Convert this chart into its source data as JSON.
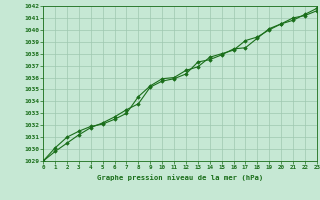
{
  "x": [
    0,
    1,
    2,
    3,
    4,
    5,
    6,
    7,
    8,
    9,
    10,
    11,
    12,
    13,
    14,
    15,
    16,
    17,
    18,
    19,
    20,
    21,
    22,
    23
  ],
  "line1": [
    1029.0,
    1029.8,
    1030.5,
    1031.2,
    1031.8,
    1032.2,
    1032.7,
    1033.3,
    1033.8,
    1035.2,
    1035.7,
    1035.9,
    1036.3,
    1037.3,
    1037.5,
    1037.9,
    1038.4,
    1038.5,
    1039.3,
    1040.1,
    1040.5,
    1041.0,
    1041.2,
    1041.6
  ],
  "line2": [
    1029.0,
    1030.1,
    1031.0,
    1031.5,
    1031.9,
    1032.1,
    1032.5,
    1033.0,
    1034.4,
    1035.3,
    1035.9,
    1036.0,
    1036.6,
    1036.9,
    1037.7,
    1038.0,
    1038.3,
    1039.1,
    1039.4,
    1040.0,
    1040.5,
    1040.8,
    1041.3,
    1041.8
  ],
  "ylim": [
    1029,
    1042
  ],
  "xlim": [
    0,
    23
  ],
  "yticks": [
    1029,
    1030,
    1031,
    1032,
    1033,
    1034,
    1035,
    1036,
    1037,
    1038,
    1039,
    1040,
    1041,
    1042
  ],
  "xticks": [
    0,
    1,
    2,
    3,
    4,
    5,
    6,
    7,
    8,
    9,
    10,
    11,
    12,
    13,
    14,
    15,
    16,
    17,
    18,
    19,
    20,
    21,
    22,
    23
  ],
  "xlabel": "Graphe pression niveau de la mer (hPa)",
  "line_color": "#1a6e1a",
  "bg_color": "#c6e8d4",
  "grid_color": "#9ec8b0",
  "text_color": "#1a6e1a",
  "marker": "D",
  "marker_size": 1.8,
  "line_width": 0.8
}
